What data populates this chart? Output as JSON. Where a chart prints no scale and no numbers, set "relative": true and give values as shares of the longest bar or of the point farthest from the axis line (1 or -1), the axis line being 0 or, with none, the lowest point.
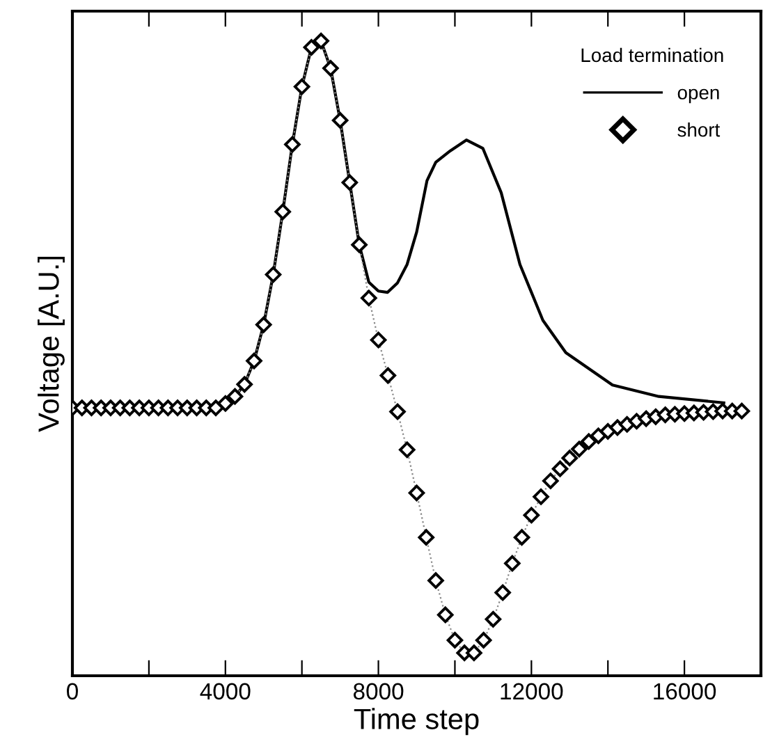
{
  "chart_data": {
    "type": "line",
    "relative": true,
    "xlabel": "Time step",
    "ylabel": "Voltage [A.U.]",
    "legend_title": "Load termination",
    "legend": "top right",
    "grid": false,
    "xlim": [
      0,
      18000
    ],
    "xticks": [
      0,
      {
        "value": 2000,
        "label": null
      },
      4000,
      {
        "value": 6000,
        "label": null
      },
      8000,
      {
        "value": 10000,
        "label": null
      },
      12000,
      {
        "value": 14000,
        "label": null
      },
      16000
    ],
    "tick_labels": "x",
    "series": [
      {
        "name": "open",
        "color": "#000000",
        "marker": "none",
        "line_style": "solid",
        "x": [
          3750,
          4000,
          4250,
          4500,
          4750,
          5000,
          5250,
          5500,
          5750,
          6000,
          6250,
          6500,
          6750,
          7000,
          7250,
          7500,
          7750,
          8000,
          8240,
          8500,
          8750,
          9000,
          9270,
          9500,
          9880,
          10300,
          10730,
          11210,
          11700,
          12300,
          12900,
          14120,
          15330,
          17030
        ],
        "values": [
          0.422,
          0.429,
          0.44,
          0.459,
          0.496,
          0.553,
          0.632,
          0.731,
          0.837,
          0.928,
          0.99,
          1.0,
          0.957,
          0.875,
          0.777,
          0.679,
          0.62,
          0.606,
          0.604,
          0.619,
          0.648,
          0.699,
          0.78,
          0.809,
          0.827,
          0.844,
          0.831,
          0.761,
          0.648,
          0.56,
          0.509,
          0.458,
          0.44,
          0.43
        ]
      },
      {
        "name": "short",
        "color": "#000000",
        "marker": "diamond",
        "line_style": "dotted",
        "x": [
          0,
          250,
          500,
          750,
          1000,
          1250,
          1500,
          1750,
          2000,
          2250,
          2500,
          2750,
          3000,
          3250,
          3500,
          3750,
          4000,
          4250,
          4500,
          4750,
          5000,
          5250,
          5500,
          5750,
          6000,
          6250,
          6500,
          6750,
          7000,
          7250,
          7500,
          7750,
          8000,
          8250,
          8500,
          8750,
          9000,
          9250,
          9500,
          9750,
          10000,
          10250,
          10500,
          10750,
          11000,
          11250,
          11500,
          11750,
          12000,
          12250,
          12500,
          12750,
          13000,
          13250,
          13500,
          13750,
          14000,
          14250,
          14500,
          14750,
          15000,
          15250,
          15500,
          15750,
          16000,
          16250,
          16500,
          16750,
          17000,
          17250,
          17500
        ],
        "values": [
          0.422,
          0.422,
          0.422,
          0.422,
          0.422,
          0.422,
          0.422,
          0.422,
          0.422,
          0.422,
          0.422,
          0.422,
          0.422,
          0.422,
          0.422,
          0.422,
          0.429,
          0.44,
          0.459,
          0.496,
          0.553,
          0.632,
          0.731,
          0.837,
          0.928,
          0.99,
          1.0,
          0.957,
          0.875,
          0.777,
          0.679,
          0.595,
          0.529,
          0.473,
          0.416,
          0.356,
          0.288,
          0.218,
          0.15,
          0.096,
          0.056,
          0.036,
          0.036,
          0.056,
          0.089,
          0.131,
          0.177,
          0.218,
          0.253,
          0.282,
          0.307,
          0.326,
          0.343,
          0.357,
          0.369,
          0.378,
          0.385,
          0.391,
          0.396,
          0.401,
          0.405,
          0.408,
          0.411,
          0.412,
          0.413,
          0.414,
          0.415,
          0.416,
          0.417,
          0.417,
          0.417
        ]
      }
    ]
  }
}
